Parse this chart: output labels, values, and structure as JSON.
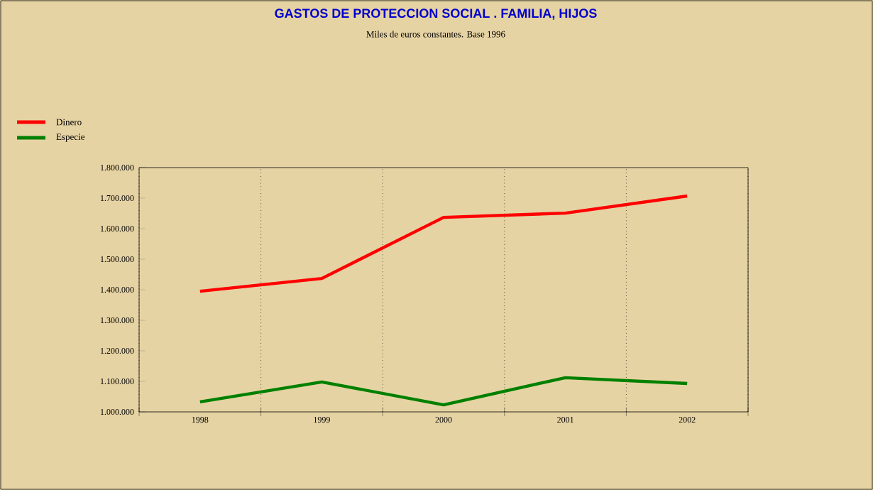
{
  "chart_data": {
    "type": "line",
    "title": "GASTOS DE PROTECCION SOCIAL . FAMILIA, HIJOS",
    "subtitle": "Miles de euros constantes. Base 1996",
    "categories": [
      "1998",
      "1999",
      "2000",
      "2001",
      "2002"
    ],
    "series": [
      {
        "name": "Dinero",
        "color": "#ff0000",
        "values": [
          1395000,
          1437000,
          1637000,
          1651000,
          1707000
        ]
      },
      {
        "name": "Especie",
        "color": "#008000",
        "values": [
          1033000,
          1098000,
          1023000,
          1112000,
          1093000
        ]
      }
    ],
    "ylim": [
      1000000,
      1800000
    ],
    "yticks": [
      {
        "value": 1000000,
        "label": "1.000.000"
      },
      {
        "value": 1100000,
        "label": "1.100.000"
      },
      {
        "value": 1200000,
        "label": "1.200.000"
      },
      {
        "value": 1300000,
        "label": "1.300.000"
      },
      {
        "value": 1400000,
        "label": "1.400.000"
      },
      {
        "value": 1500000,
        "label": "1.500.000"
      },
      {
        "value": 1600000,
        "label": "1.600.000"
      },
      {
        "value": 1700000,
        "label": "1.700.000"
      },
      {
        "value": 1800000,
        "label": "1.800.000"
      }
    ],
    "grid": "x",
    "legend": "top left",
    "marker": "none",
    "line_style": "solid"
  }
}
